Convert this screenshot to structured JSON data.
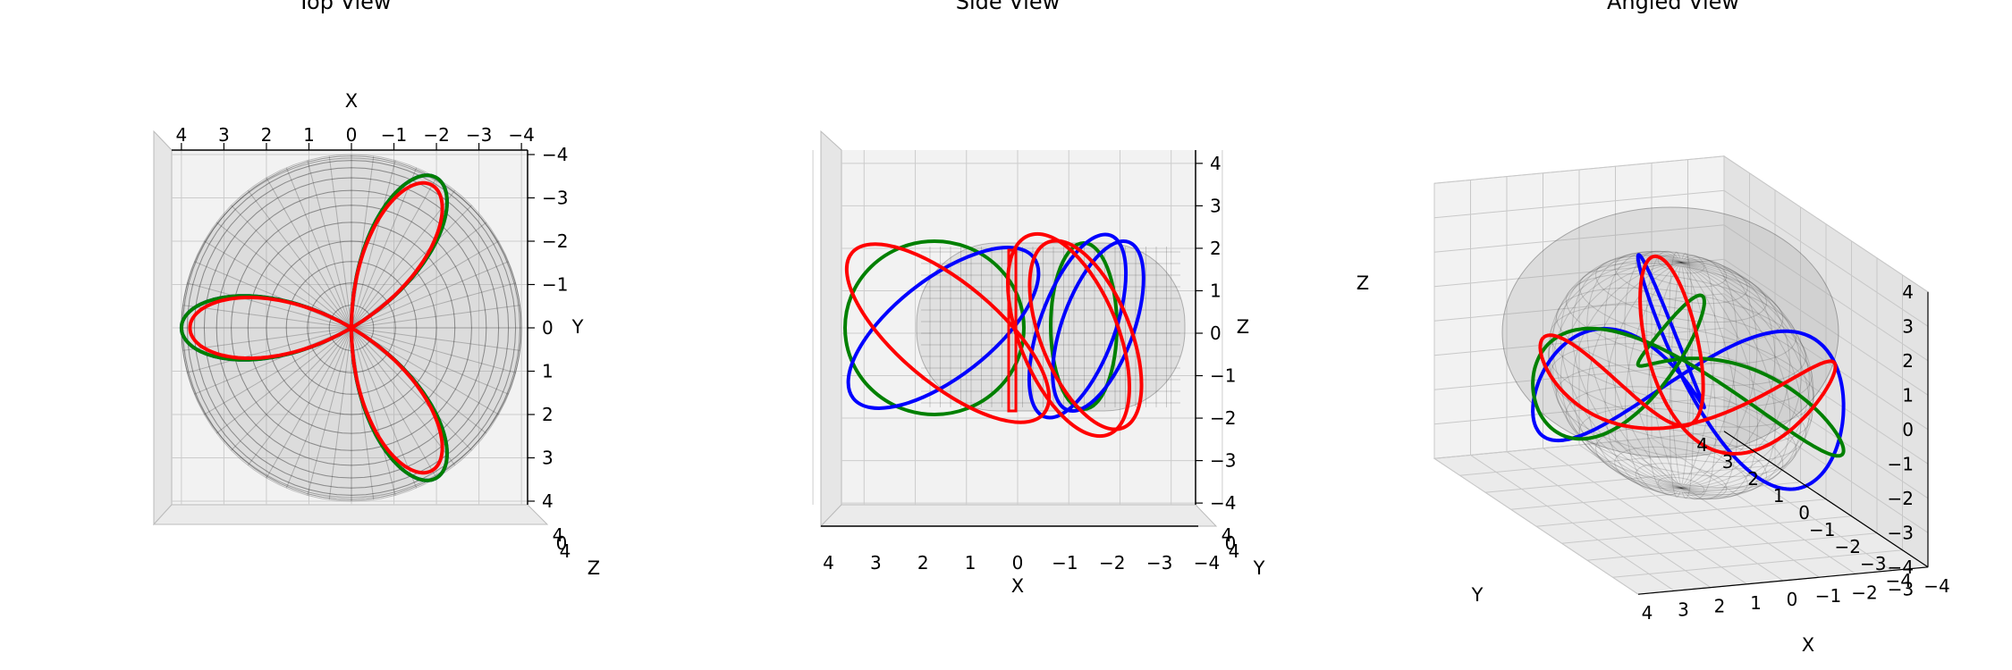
{
  "chart_data": {
    "type": "line3d",
    "subplots": [
      {
        "title": "Top View",
        "view": "top",
        "xlabel": "X",
        "ylabel": "Y",
        "zlabel": "Z",
        "x_ticks": [
          "4",
          "3",
          "2",
          "1",
          "0",
          "−1",
          "−2",
          "−3",
          "−4"
        ],
        "y_ticks": [
          "−4",
          "−3",
          "−2",
          "−1",
          "0",
          "1",
          "2",
          "3",
          "4"
        ],
        "z_ticks": [
          "4",
          "0",
          "4"
        ],
        "xlim": [
          -4,
          4
        ],
        "ylim": [
          -4,
          4
        ],
        "zlim": [
          -4,
          4
        ],
        "grid": true
      },
      {
        "title": "Side View",
        "view": "side",
        "xlabel": "X",
        "ylabel": "Y",
        "zlabel": "Z",
        "x_ticks": [
          "4",
          "3",
          "2",
          "1",
          "0",
          "−1",
          "−2",
          "−3",
          "−4"
        ],
        "z_ticks": [
          "4",
          "3",
          "2",
          "1",
          "0",
          "−1",
          "−2",
          "−3",
          "−4"
        ],
        "y_ticks": [
          "4",
          "0",
          "4"
        ],
        "xlim": [
          -4,
          4
        ],
        "ylim": [
          -4,
          4
        ],
        "zlim": [
          -4,
          4
        ],
        "grid": true
      },
      {
        "title": "Angled View",
        "view": "perspective",
        "xlabel": "X",
        "ylabel": "Y",
        "zlabel": "Z",
        "x_ticks": [
          "4",
          "3",
          "2",
          "1",
          "0",
          "−1",
          "−2",
          "−3",
          "−4"
        ],
        "y_ticks": [
          "−4",
          "−3",
          "−2",
          "−1",
          "0",
          "1",
          "2",
          "3",
          "4"
        ],
        "z_ticks": [
          "4",
          "3",
          "2",
          "1",
          "0",
          "−1",
          "−2",
          "−3",
          "−4"
        ],
        "xlim": [
          -4,
          4
        ],
        "ylim": [
          -4,
          4
        ],
        "zlim": [
          -4,
          4
        ],
        "grid": true
      }
    ],
    "sphere": {
      "radius": 4,
      "color": "#808080",
      "style": "translucent wireframe"
    },
    "series": [
      {
        "color": "#0000ff",
        "curve": "three-lobed rose loop, r = 4 cos 3θ"
      },
      {
        "color": "#008000",
        "curve": "three-lobed rose loop, r = 4 cos 3θ"
      },
      {
        "color": "#ff0000",
        "curve": "three-lobed rose loop, r = 3.8 cos 3θ"
      }
    ]
  }
}
